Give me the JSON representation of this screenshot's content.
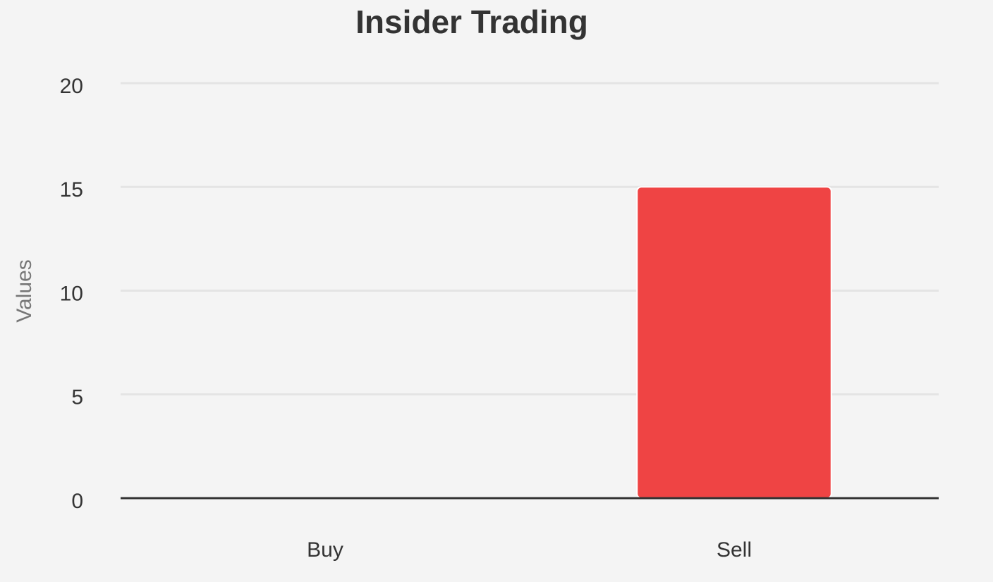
{
  "chart_data": {
    "type": "bar",
    "title": "Insider Trading",
    "y_label": "Values",
    "categories": [
      "Buy",
      "Sell"
    ],
    "values": [
      0,
      15
    ],
    "color": "#ef4444",
    "ylim": [
      0,
      20
    ],
    "yticks": [
      0,
      5,
      10,
      15,
      20
    ],
    "grid": true
  }
}
